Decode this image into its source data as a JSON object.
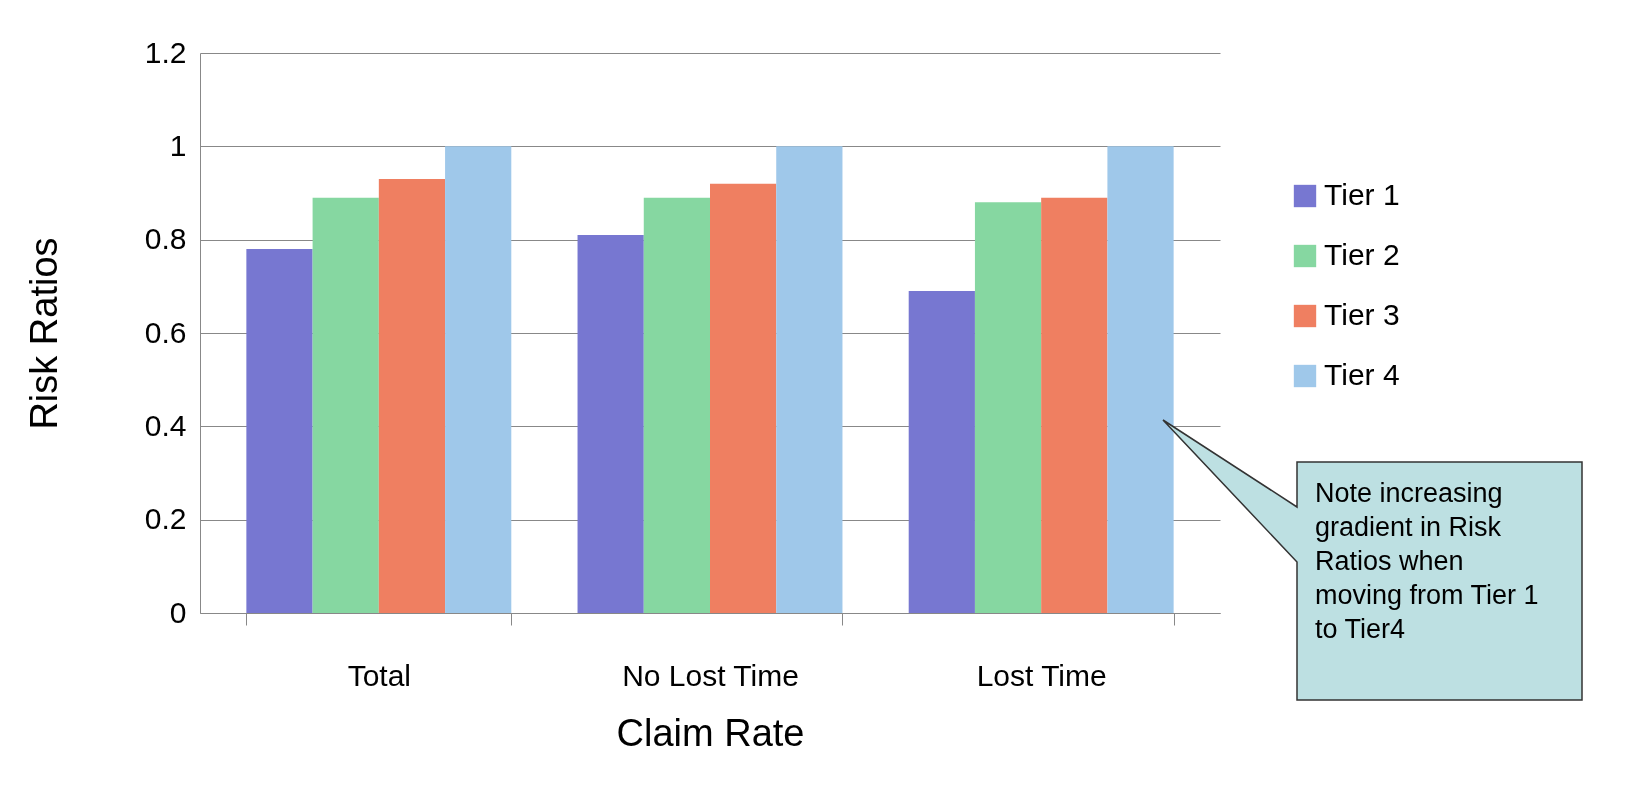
{
  "chart_data": {
    "type": "bar",
    "xlabel": "Claim Rate",
    "ylabel": "Risk Ratios",
    "categories": [
      "Total",
      "No Lost Time",
      "Lost Time"
    ],
    "series": [
      {
        "name": "Tier 1",
        "color": "#7777d1",
        "values": [
          0.78,
          0.81,
          0.69
        ]
      },
      {
        "name": "Tier 2",
        "color": "#86d7a1",
        "values": [
          0.89,
          0.89,
          0.88
        ]
      },
      {
        "name": "Tier 3",
        "color": "#ef7f61",
        "values": [
          0.93,
          0.92,
          0.89
        ]
      },
      {
        "name": "Tier 4",
        "color": "#9fc8ea",
        "values": [
          1,
          1,
          1
        ]
      }
    ],
    "ylim": [
      0,
      1.2
    ],
    "yticks": [
      0,
      0.2,
      0.4,
      0.6,
      0.8,
      1,
      1.2
    ],
    "grid": "y",
    "legend": "right",
    "annotations": [
      "Note increasing gradient in Risk Ratios when moving from Tier 1 to Tier4"
    ]
  }
}
